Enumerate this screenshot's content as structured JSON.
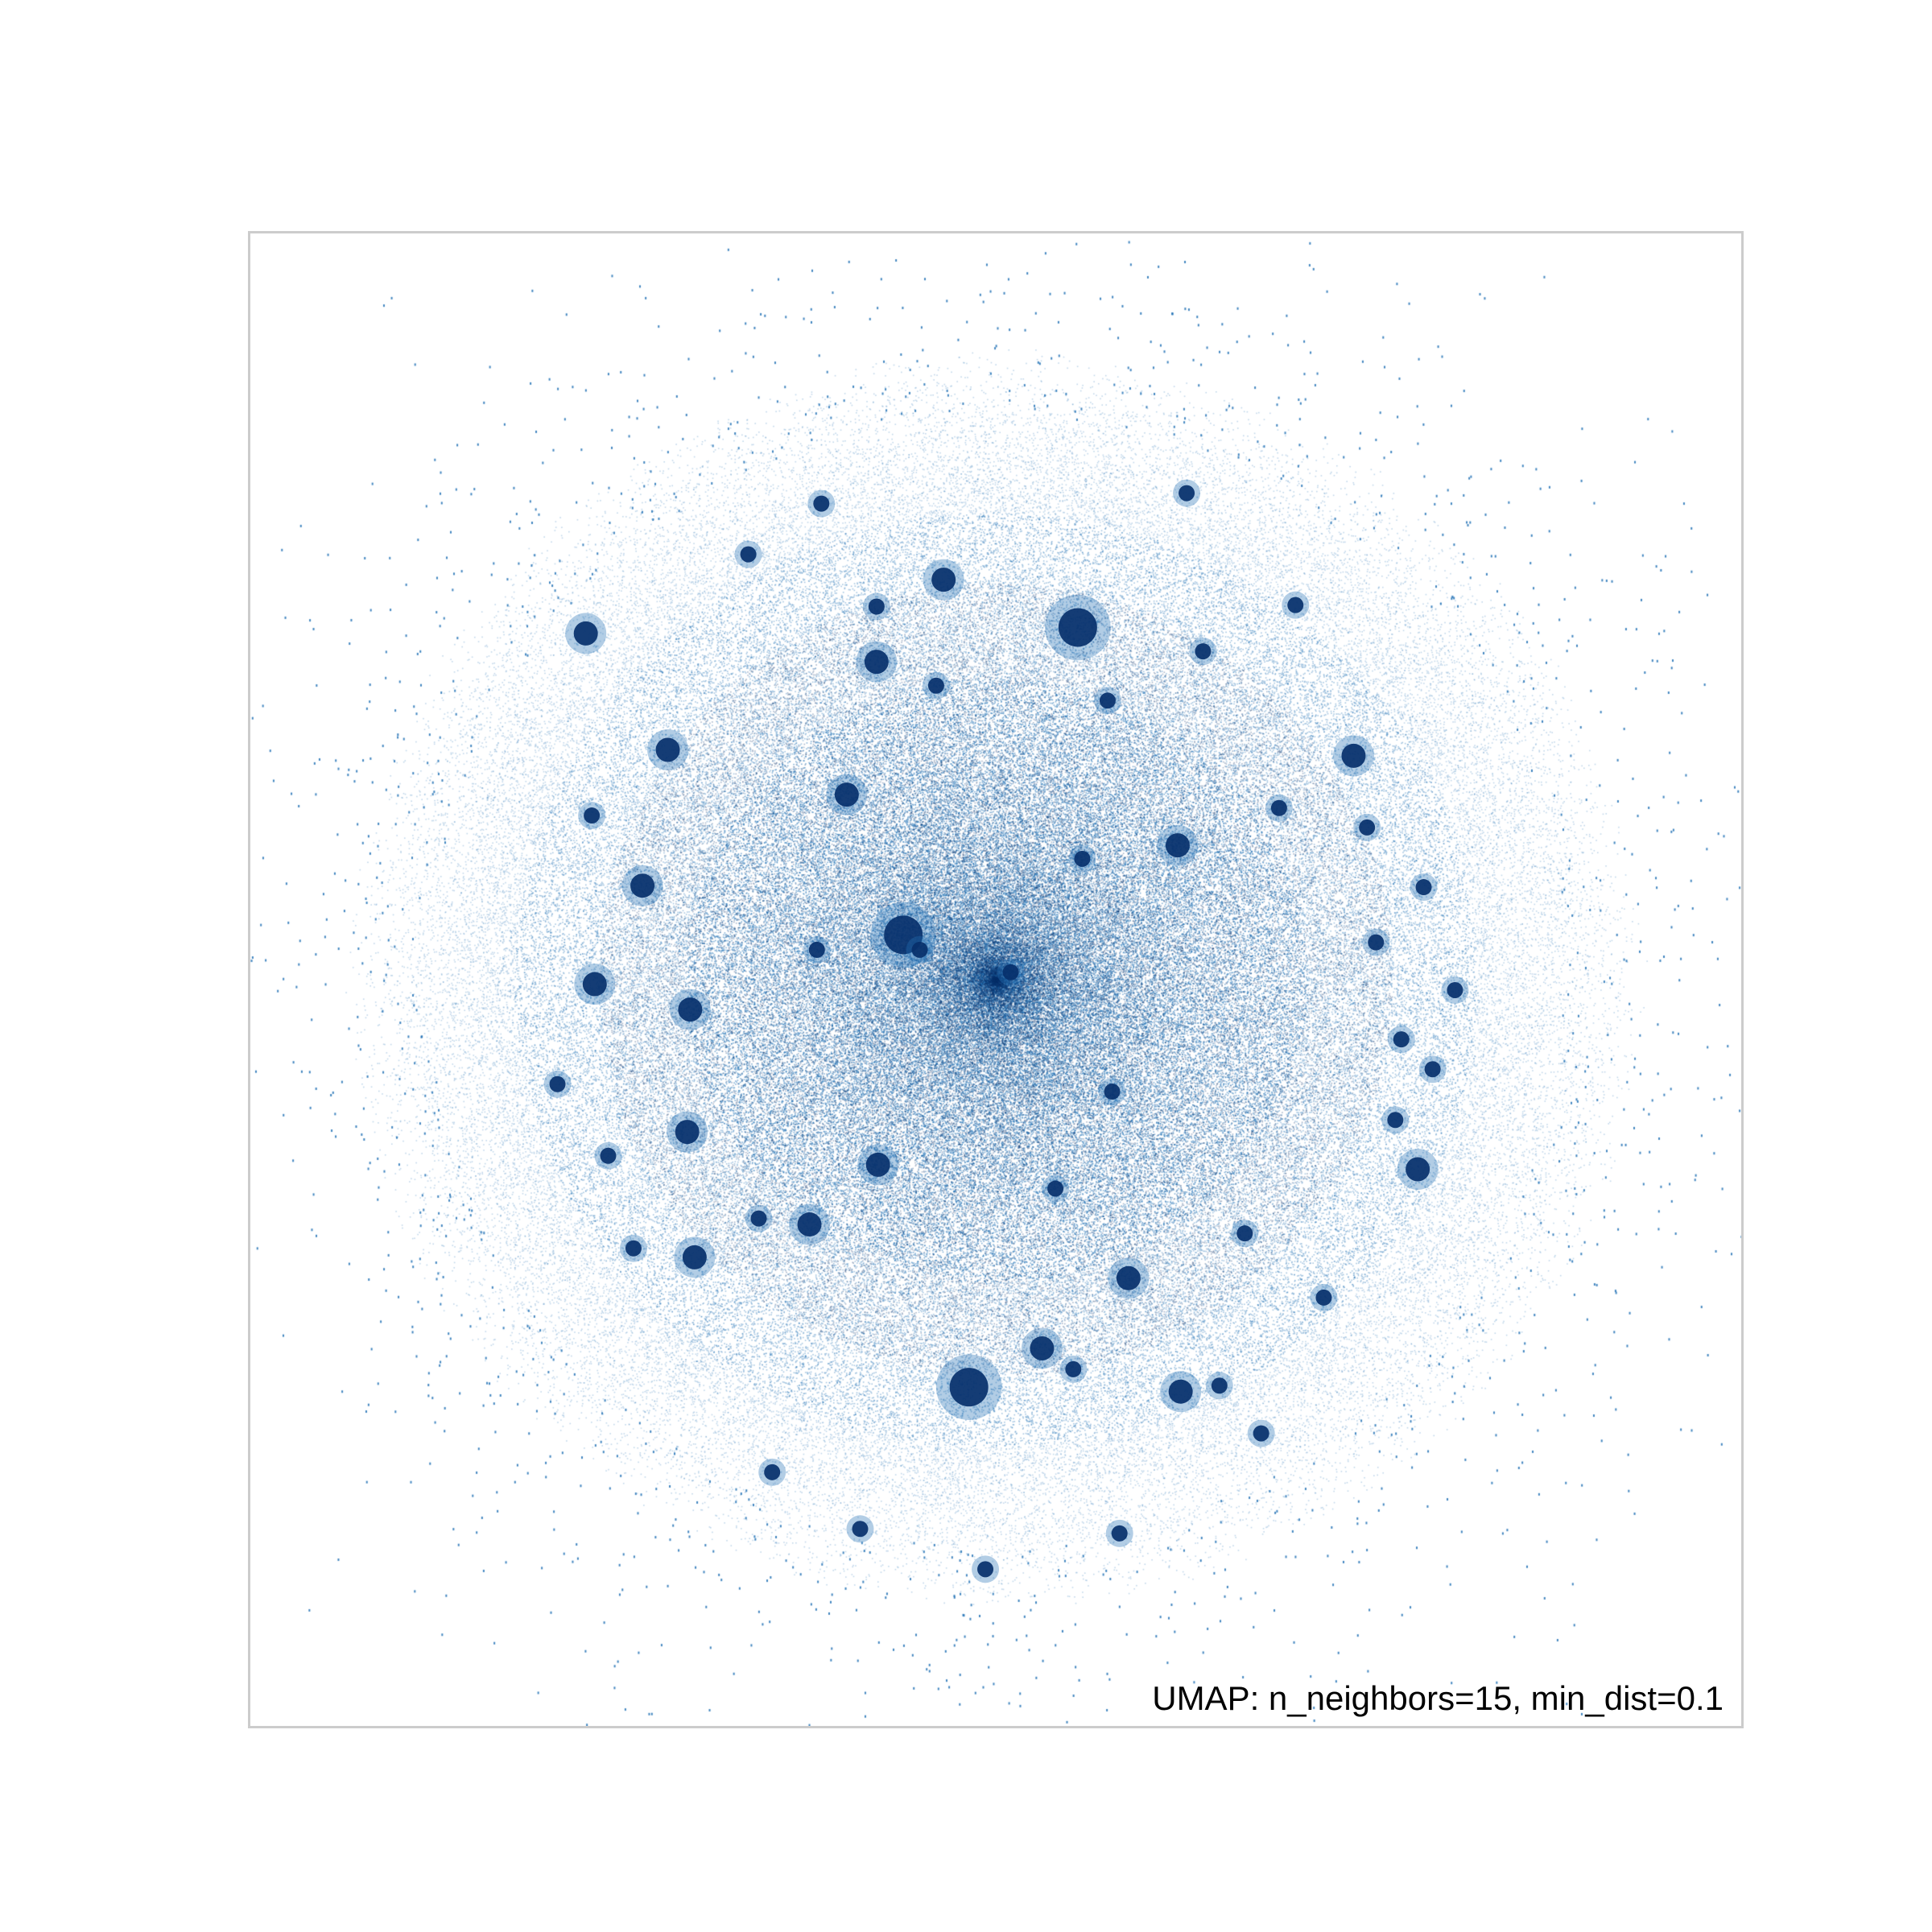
{
  "chart_data": {
    "type": "scatter",
    "title": "",
    "caption": "UMAP: n_neighbors=15, min_dist=0.1",
    "xlabel": "",
    "ylabel": "",
    "xlim": [
      0,
      100
    ],
    "ylim": [
      0,
      100
    ],
    "grid": false,
    "axes_ticks": false,
    "point_color": "#08306b",
    "halo_color": "#2171b5",
    "background_color": "#ffffff",
    "frame_color": "#cccccc",
    "cloud": {
      "center": [
        50,
        50
      ],
      "radius": 38,
      "n_points": 180000
    },
    "series": [
      {
        "clusters": [
          {
            "x": 43.8,
            "y": 53.0,
            "size": "large"
          },
          {
            "x": 48.2,
            "y": 22.7,
            "size": "large"
          },
          {
            "x": 55.5,
            "y": 73.6,
            "size": "large"
          },
          {
            "x": 74.0,
            "y": 65.0,
            "size": "medium"
          },
          {
            "x": 62.2,
            "y": 59.0,
            "size": "medium"
          },
          {
            "x": 78.3,
            "y": 37.3,
            "size": "medium"
          },
          {
            "x": 29.5,
            "y": 48.0,
            "size": "medium"
          },
          {
            "x": 58.9,
            "y": 30.0,
            "size": "medium"
          },
          {
            "x": 46.5,
            "y": 76.8,
            "size": "medium"
          },
          {
            "x": 40.0,
            "y": 62.4,
            "size": "medium"
          },
          {
            "x": 28.0,
            "y": 65.4,
            "size": "medium"
          },
          {
            "x": 26.3,
            "y": 56.3,
            "size": "medium"
          },
          {
            "x": 22.5,
            "y": 73.2,
            "size": "medium"
          },
          {
            "x": 23.1,
            "y": 49.7,
            "size": "medium"
          },
          {
            "x": 29.3,
            "y": 39.8,
            "size": "medium"
          },
          {
            "x": 37.5,
            "y": 33.6,
            "size": "medium"
          },
          {
            "x": 29.8,
            "y": 31.4,
            "size": "medium"
          },
          {
            "x": 25.7,
            "y": 32.0,
            "size": "small"
          },
          {
            "x": 55.8,
            "y": 58.1,
            "size": "small"
          },
          {
            "x": 62.4,
            "y": 22.4,
            "size": "medium"
          },
          {
            "x": 67.8,
            "y": 19.6,
            "size": "small"
          },
          {
            "x": 72.0,
            "y": 28.7,
            "size": "small"
          },
          {
            "x": 74.9,
            "y": 60.2,
            "size": "small"
          },
          {
            "x": 63.9,
            "y": 72.0,
            "size": "small"
          },
          {
            "x": 70.1,
            "y": 75.1,
            "size": "small"
          },
          {
            "x": 62.8,
            "y": 82.6,
            "size": "small"
          },
          {
            "x": 53.1,
            "y": 25.3,
            "size": "medium"
          },
          {
            "x": 42.0,
            "y": 71.3,
            "size": "medium"
          },
          {
            "x": 33.4,
            "y": 78.5,
            "size": "small"
          },
          {
            "x": 38.3,
            "y": 81.9,
            "size": "small"
          },
          {
            "x": 46.0,
            "y": 69.7,
            "size": "small"
          },
          {
            "x": 55.2,
            "y": 23.9,
            "size": "small"
          },
          {
            "x": 76.8,
            "y": 40.6,
            "size": "small"
          },
          {
            "x": 80.8,
            "y": 49.3,
            "size": "small"
          },
          {
            "x": 78.7,
            "y": 56.2,
            "size": "small"
          },
          {
            "x": 79.3,
            "y": 44.0,
            "size": "small"
          },
          {
            "x": 75.5,
            "y": 52.5,
            "size": "small"
          },
          {
            "x": 22.9,
            "y": 61.0,
            "size": "small"
          },
          {
            "x": 35.0,
            "y": 17.0,
            "size": "small"
          },
          {
            "x": 40.9,
            "y": 13.2,
            "size": "small"
          },
          {
            "x": 49.3,
            "y": 10.5,
            "size": "small"
          },
          {
            "x": 58.3,
            "y": 12.9,
            "size": "small"
          },
          {
            "x": 42.1,
            "y": 37.6,
            "size": "medium"
          },
          {
            "x": 54.0,
            "y": 36.0,
            "size": "small"
          },
          {
            "x": 57.8,
            "y": 42.5,
            "size": "small"
          },
          {
            "x": 51.0,
            "y": 50.5,
            "size": "small"
          },
          {
            "x": 44.9,
            "y": 52.0,
            "size": "small"
          },
          {
            "x": 38.0,
            "y": 52.0,
            "size": "small"
          },
          {
            "x": 34.1,
            "y": 34.0,
            "size": "small"
          },
          {
            "x": 20.6,
            "y": 43.0,
            "size": "small"
          },
          {
            "x": 24.0,
            "y": 38.2,
            "size": "small"
          },
          {
            "x": 77.2,
            "y": 46.0,
            "size": "small"
          },
          {
            "x": 69.0,
            "y": 61.5,
            "size": "small"
          },
          {
            "x": 66.7,
            "y": 33.0,
            "size": "small"
          },
          {
            "x": 65.0,
            "y": 22.8,
            "size": "small"
          },
          {
            "x": 57.5,
            "y": 68.7,
            "size": "small"
          },
          {
            "x": 42.0,
            "y": 75.0,
            "size": "small"
          }
        ]
      }
    ]
  }
}
